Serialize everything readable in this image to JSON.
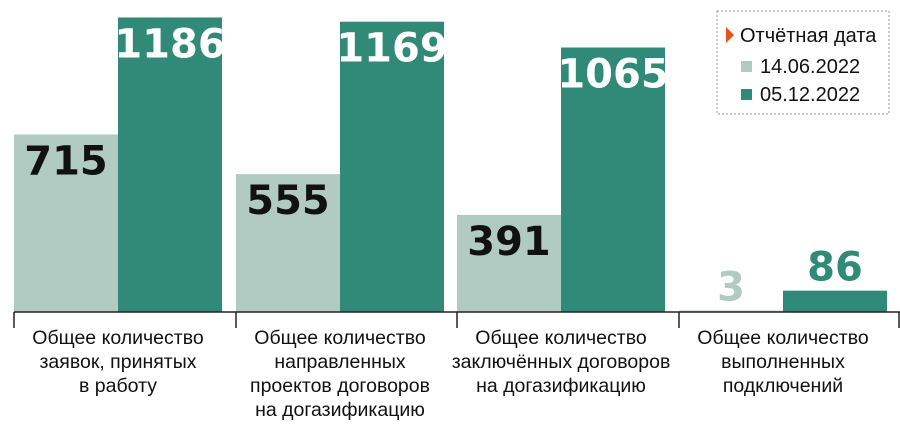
{
  "chart_data": {
    "type": "bar",
    "categories": [
      [
        "Общее количество",
        "заявок, принятых",
        "в работу"
      ],
      [
        "Общее количество",
        "направленных",
        "проектов договоров",
        "на догазификацию"
      ],
      [
        "Общее количество",
        "заключённых договоров",
        "на догазификацию"
      ],
      [
        "Общее количество",
        "выполненных",
        "подключений"
      ]
    ],
    "series": [
      {
        "name": "14.06.2022",
        "color": "#b2cbc2",
        "label_color": "#111111",
        "values": [
          715,
          555,
          391,
          3
        ]
      },
      {
        "name": "05.12.2022",
        "color": "#318a78",
        "label_color": "#ffffff",
        "values": [
          1186,
          1169,
          1065,
          86
        ]
      }
    ],
    "ylim": [
      0,
      1200
    ],
    "grid": false,
    "legend": {
      "title": "Отчётная дата",
      "position": "top-right",
      "marker_color": "#e8501e"
    },
    "small_value_label_colors": [
      "#b2cbc2",
      "#318a78"
    ]
  }
}
